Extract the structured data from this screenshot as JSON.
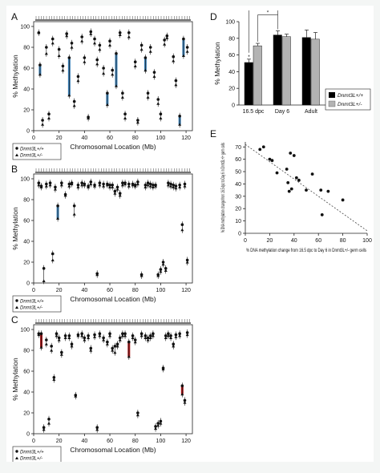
{
  "figure": {
    "background": "#ffffff",
    "colors": {
      "marker": "#111111",
      "blue": "#3a7fb5",
      "red": "#a8191b",
      "wt_bar": "#000000",
      "het_bar": "#b3b3b3",
      "trend": "#444444"
    }
  },
  "chart_data": [
    {
      "id": "A",
      "type": "scatter",
      "panel_label": "A",
      "xlabel": "Chromosomal Location (Mb)",
      "ylabel": "% Methylation",
      "xlim": [
        0,
        125
      ],
      "ylim": [
        0,
        100
      ],
      "xticks": [
        "0",
        "20",
        "40",
        "60",
        "80",
        "100",
        "120"
      ],
      "yticks": [
        "0",
        "20",
        "40",
        "60",
        "80",
        "100"
      ],
      "series": [
        {
          "name": "Dnmt3L+/+",
          "marker": "circle"
        },
        {
          "name": "Dnmt3L+/-",
          "marker": "triangle"
        }
      ],
      "highlight_color": "blue",
      "points": [
        {
          "x": 4,
          "wt": 94,
          "het": 94
        },
        {
          "x": 5,
          "wt": 63,
          "het": 54,
          "hl": true
        },
        {
          "x": 7,
          "wt": 10,
          "het": 6
        },
        {
          "x": 10,
          "wt": 80,
          "het": 74
        },
        {
          "x": 12,
          "wt": 16,
          "het": 12
        },
        {
          "x": 15,
          "wt": 88,
          "het": 84
        },
        {
          "x": 20,
          "wt": 78,
          "het": 72
        },
        {
          "x": 23,
          "wt": 62,
          "het": 58
        },
        {
          "x": 26,
          "wt": 93,
          "het": 91
        },
        {
          "x": 28,
          "wt": 70,
          "het": 34,
          "hl": true
        },
        {
          "x": 30,
          "wt": 84,
          "het": 80
        },
        {
          "x": 32,
          "wt": 28,
          "het": 24
        },
        {
          "x": 35,
          "wt": 52,
          "het": 48
        },
        {
          "x": 38,
          "wt": 90,
          "het": 86
        },
        {
          "x": 40,
          "wt": 70,
          "het": 66
        },
        {
          "x": 43,
          "wt": 13,
          "het": 12
        },
        {
          "x": 45,
          "wt": 95,
          "het": 93
        },
        {
          "x": 48,
          "wt": 88,
          "het": 84
        },
        {
          "x": 50,
          "wt": 68,
          "het": 64
        },
        {
          "x": 52,
          "wt": 82,
          "het": 78
        },
        {
          "x": 55,
          "wt": 60,
          "het": 55
        },
        {
          "x": 58,
          "wt": 36,
          "het": 25,
          "hl": true
        },
        {
          "x": 60,
          "wt": 86,
          "het": 82
        },
        {
          "x": 62,
          "wt": 58,
          "het": 54
        },
        {
          "x": 65,
          "wt": 74,
          "het": 43,
          "hl": true
        },
        {
          "x": 68,
          "wt": 94,
          "het": 92
        },
        {
          "x": 70,
          "wt": 36,
          "het": 32
        },
        {
          "x": 72,
          "wt": 16,
          "het": 12
        },
        {
          "x": 75,
          "wt": 94,
          "het": 90
        },
        {
          "x": 80,
          "wt": 66,
          "het": 62
        },
        {
          "x": 82,
          "wt": 10,
          "het": 8
        },
        {
          "x": 85,
          "wt": 82,
          "het": 78
        },
        {
          "x": 88,
          "wt": 70,
          "het": 58,
          "hl": true
        },
        {
          "x": 90,
          "wt": 36,
          "het": 32
        },
        {
          "x": 92,
          "wt": 80,
          "het": 76
        },
        {
          "x": 95,
          "wt": 56,
          "het": 52
        },
        {
          "x": 98,
          "wt": 30,
          "het": 26
        },
        {
          "x": 100,
          "wt": 16,
          "het": 12
        },
        {
          "x": 103,
          "wt": 87,
          "het": 83
        },
        {
          "x": 105,
          "wt": 91,
          "het": 89
        },
        {
          "x": 110,
          "wt": 71,
          "het": 67
        },
        {
          "x": 112,
          "wt": 48,
          "het": 44
        },
        {
          "x": 115,
          "wt": 14,
          "het": 6,
          "hl": true
        },
        {
          "x": 118,
          "wt": 88,
          "het": 72,
          "hl": true
        },
        {
          "x": 121,
          "wt": 80,
          "het": 76
        }
      ]
    },
    {
      "id": "B",
      "type": "scatter",
      "panel_label": "B",
      "xlabel": "Chromosomal Location (Mb)",
      "ylabel": "% Methylation",
      "xlim": [
        0,
        125
      ],
      "ylim": [
        0,
        100
      ],
      "xticks": [
        "0",
        "20",
        "40",
        "60",
        "80",
        "100",
        "120"
      ],
      "yticks": [
        "0",
        "20",
        "40",
        "60",
        "80",
        "100"
      ],
      "series": [
        {
          "name": "Dnmt3L+/+",
          "marker": "circle"
        },
        {
          "name": "Dnmt3L+/-",
          "marker": "triangle"
        }
      ],
      "highlight_color": "blue",
      "points": [
        {
          "x": 4,
          "wt": 96,
          "het": 94
        },
        {
          "x": 6,
          "wt": 93,
          "het": 92
        },
        {
          "x": 8,
          "wt": 14,
          "het": 2
        },
        {
          "x": 10,
          "wt": 95,
          "het": 93
        },
        {
          "x": 13,
          "wt": 96,
          "het": 94
        },
        {
          "x": 15,
          "wt": 28,
          "het": 22
        },
        {
          "x": 17,
          "wt": 92,
          "het": 90
        },
        {
          "x": 19,
          "wt": 74,
          "het": 62,
          "hl": true
        },
        {
          "x": 22,
          "wt": 96,
          "het": 94
        },
        {
          "x": 25,
          "wt": 85,
          "het": 84
        },
        {
          "x": 28,
          "wt": 95,
          "het": 93
        },
        {
          "x": 30,
          "wt": 96,
          "het": 95
        },
        {
          "x": 32,
          "wt": 74,
          "het": 66
        },
        {
          "x": 35,
          "wt": 94,
          "het": 92
        },
        {
          "x": 38,
          "wt": 96,
          "het": 94
        },
        {
          "x": 40,
          "wt": 95,
          "het": 94
        },
        {
          "x": 43,
          "wt": 93,
          "het": 92
        },
        {
          "x": 45,
          "wt": 97,
          "het": 95
        },
        {
          "x": 48,
          "wt": 94,
          "het": 93
        },
        {
          "x": 50,
          "wt": 9,
          "het": 8
        },
        {
          "x": 52,
          "wt": 96,
          "het": 94
        },
        {
          "x": 55,
          "wt": 95,
          "het": 93
        },
        {
          "x": 58,
          "wt": 95,
          "het": 94
        },
        {
          "x": 60,
          "wt": 94,
          "het": 92
        },
        {
          "x": 62,
          "wt": 94,
          "het": 92
        },
        {
          "x": 64,
          "wt": 88,
          "het": 86
        },
        {
          "x": 66,
          "wt": 92,
          "het": 90
        },
        {
          "x": 68,
          "wt": 86,
          "het": 84
        },
        {
          "x": 70,
          "wt": 96,
          "het": 94
        },
        {
          "x": 72,
          "wt": 96,
          "het": 95
        },
        {
          "x": 75,
          "wt": 95,
          "het": 93
        },
        {
          "x": 78,
          "wt": 95,
          "het": 94
        },
        {
          "x": 80,
          "wt": 94,
          "het": 93
        },
        {
          "x": 82,
          "wt": 97,
          "het": 95
        },
        {
          "x": 85,
          "wt": 8,
          "het": 7
        },
        {
          "x": 88,
          "wt": 94,
          "het": 92
        },
        {
          "x": 90,
          "wt": 96,
          "het": 94
        },
        {
          "x": 92,
          "wt": 95,
          "het": 93
        },
        {
          "x": 94,
          "wt": 94,
          "het": 92
        },
        {
          "x": 96,
          "wt": 94,
          "het": 93
        },
        {
          "x": 98,
          "wt": 8,
          "het": 7
        },
        {
          "x": 100,
          "wt": 13,
          "het": 11
        },
        {
          "x": 102,
          "wt": 20,
          "het": 18
        },
        {
          "x": 104,
          "wt": 14,
          "het": 12
        },
        {
          "x": 106,
          "wt": 96,
          "het": 94
        },
        {
          "x": 108,
          "wt": 95,
          "het": 93
        },
        {
          "x": 110,
          "wt": 94,
          "het": 92
        },
        {
          "x": 112,
          "wt": 93,
          "het": 91
        },
        {
          "x": 115,
          "wt": 94,
          "het": 92
        },
        {
          "x": 117,
          "wt": 56,
          "het": 51
        },
        {
          "x": 119,
          "wt": 95,
          "het": 93
        },
        {
          "x": 121,
          "wt": 22,
          "het": 20
        }
      ]
    },
    {
      "id": "C",
      "type": "scatter",
      "panel_label": "C",
      "xlabel": "Chromosomal Location (Mb)",
      "ylabel": "% Methylation",
      "xlim": [
        0,
        125
      ],
      "ylim": [
        0,
        100
      ],
      "xticks": [
        "0",
        "20",
        "40",
        "60",
        "80",
        "100",
        "120"
      ],
      "yticks": [
        "0",
        "20",
        "40",
        "60",
        "80",
        "100"
      ],
      "series": [
        {
          "name": "Dnmt3L+/+",
          "marker": "circle"
        },
        {
          "name": "Dnmt3L+/-",
          "marker": "triangle"
        }
      ],
      "highlight_color": "red",
      "points": [
        {
          "x": 4,
          "wt": 96,
          "het": 95
        },
        {
          "x": 6,
          "wt": 96,
          "het": 83,
          "hl": true
        },
        {
          "x": 8,
          "wt": 6,
          "het": 4
        },
        {
          "x": 10,
          "wt": 90,
          "het": 86
        },
        {
          "x": 12,
          "wt": 14,
          "het": 10
        },
        {
          "x": 14,
          "wt": 84,
          "het": 80
        },
        {
          "x": 16,
          "wt": 54,
          "het": 52
        },
        {
          "x": 18,
          "wt": 96,
          "het": 94
        },
        {
          "x": 20,
          "wt": 92,
          "het": 90
        },
        {
          "x": 22,
          "wt": 78,
          "het": 76
        },
        {
          "x": 25,
          "wt": 94,
          "het": 92
        },
        {
          "x": 28,
          "wt": 94,
          "het": 92
        },
        {
          "x": 30,
          "wt": 86,
          "het": 84
        },
        {
          "x": 33,
          "wt": 37,
          "het": 36
        },
        {
          "x": 35,
          "wt": 95,
          "het": 94
        },
        {
          "x": 38,
          "wt": 96,
          "het": 94
        },
        {
          "x": 40,
          "wt": 92,
          "het": 90
        },
        {
          "x": 43,
          "wt": 94,
          "het": 92
        },
        {
          "x": 45,
          "wt": 82,
          "het": 80
        },
        {
          "x": 48,
          "wt": 95,
          "het": 93
        },
        {
          "x": 50,
          "wt": 6,
          "het": 4
        },
        {
          "x": 52,
          "wt": 96,
          "het": 94
        },
        {
          "x": 55,
          "wt": 92,
          "het": 90
        },
        {
          "x": 58,
          "wt": 88,
          "het": 86
        },
        {
          "x": 60,
          "wt": 96,
          "het": 94
        },
        {
          "x": 62,
          "wt": 82,
          "het": 80
        },
        {
          "x": 64,
          "wt": 84,
          "het": 78
        },
        {
          "x": 66,
          "wt": 86,
          "het": 84
        },
        {
          "x": 68,
          "wt": 92,
          "het": 90
        },
        {
          "x": 70,
          "wt": 96,
          "het": 94
        },
        {
          "x": 72,
          "wt": 96,
          "het": 94
        },
        {
          "x": 75,
          "wt": 88,
          "het": 74,
          "hl": true
        },
        {
          "x": 78,
          "wt": 94,
          "het": 92
        },
        {
          "x": 80,
          "wt": 90,
          "het": 88
        },
        {
          "x": 82,
          "wt": 20,
          "het": 18
        },
        {
          "x": 85,
          "wt": 96,
          "het": 94
        },
        {
          "x": 88,
          "wt": 94,
          "het": 92
        },
        {
          "x": 90,
          "wt": 92,
          "het": 90
        },
        {
          "x": 92,
          "wt": 94,
          "het": 92
        },
        {
          "x": 94,
          "wt": 96,
          "het": 94
        },
        {
          "x": 96,
          "wt": 7,
          "het": 5
        },
        {
          "x": 98,
          "wt": 10,
          "het": 8
        },
        {
          "x": 100,
          "wt": 12,
          "het": 10
        },
        {
          "x": 102,
          "wt": 63,
          "het": 62
        },
        {
          "x": 104,
          "wt": 94,
          "het": 92
        },
        {
          "x": 106,
          "wt": 96,
          "het": 94
        },
        {
          "x": 108,
          "wt": 94,
          "het": 92
        },
        {
          "x": 110,
          "wt": 86,
          "het": 84
        },
        {
          "x": 112,
          "wt": 95,
          "het": 93
        },
        {
          "x": 115,
          "wt": 96,
          "het": 94
        },
        {
          "x": 117,
          "wt": 46,
          "het": 38,
          "hl": true
        },
        {
          "x": 119,
          "wt": 32,
          "het": 30
        },
        {
          "x": 121,
          "wt": 97,
          "het": 95
        }
      ]
    },
    {
      "id": "D",
      "type": "bar",
      "panel_label": "D",
      "ylabel": "% Methylation",
      "ylim": [
        0,
        100
      ],
      "yticks": [
        "0",
        "20",
        "40",
        "60",
        "80",
        "100"
      ],
      "categories": [
        "16.5 dpc",
        "Day 6",
        "Adult"
      ],
      "series": [
        {
          "name": "Dnmt3L+/+",
          "color": "#000000",
          "values": [
            51,
            84,
            81
          ],
          "errors": [
            4,
            5,
            9
          ]
        },
        {
          "name": "Dnmt3L+/-",
          "color": "#b3b3b3",
          "values": [
            71,
            82,
            79
          ],
          "errors": [
            3,
            3,
            8
          ]
        }
      ],
      "annotations": [
        "*",
        "*",
        "*"
      ],
      "legend_position": "bottom-right"
    },
    {
      "id": "E",
      "type": "scatter",
      "panel_label": "E",
      "xlabel": "% DNA methylation change from 16.5 dpc to Day 6 in Dnmt3L+/- germ cells",
      "ylabel": "% DNA methylation change from 16.5 dpc to Day 6 in Dnmt3L+/+ germ cells",
      "xlim": [
        0,
        100
      ],
      "ylim": [
        0,
        100
      ],
      "xticks": [
        "0",
        "20",
        "40",
        "60",
        "80",
        "100"
      ],
      "yticks": [
        "0",
        "10",
        "20",
        "30",
        "40",
        "50",
        "60",
        "70"
      ],
      "points": [
        {
          "x": 12,
          "y": 68
        },
        {
          "x": 15,
          "y": 70
        },
        {
          "x": 20,
          "y": 60
        },
        {
          "x": 22,
          "y": 59
        },
        {
          "x": 26,
          "y": 49
        },
        {
          "x": 34,
          "y": 52
        },
        {
          "x": 35,
          "y": 41
        },
        {
          "x": 36,
          "y": 34
        },
        {
          "x": 37,
          "y": 65
        },
        {
          "x": 38,
          "y": 36
        },
        {
          "x": 40,
          "y": 63
        },
        {
          "x": 42,
          "y": 45
        },
        {
          "x": 44,
          "y": 43
        },
        {
          "x": 50,
          "y": 35
        },
        {
          "x": 55,
          "y": 48
        },
        {
          "x": 62,
          "y": 35
        },
        {
          "x": 63,
          "y": 15
        },
        {
          "x": 68,
          "y": 34
        },
        {
          "x": 80,
          "y": 27
        }
      ],
      "trendline": {
        "x": [
          0,
          100
        ],
        "y": [
          72,
          2
        ]
      }
    }
  ]
}
